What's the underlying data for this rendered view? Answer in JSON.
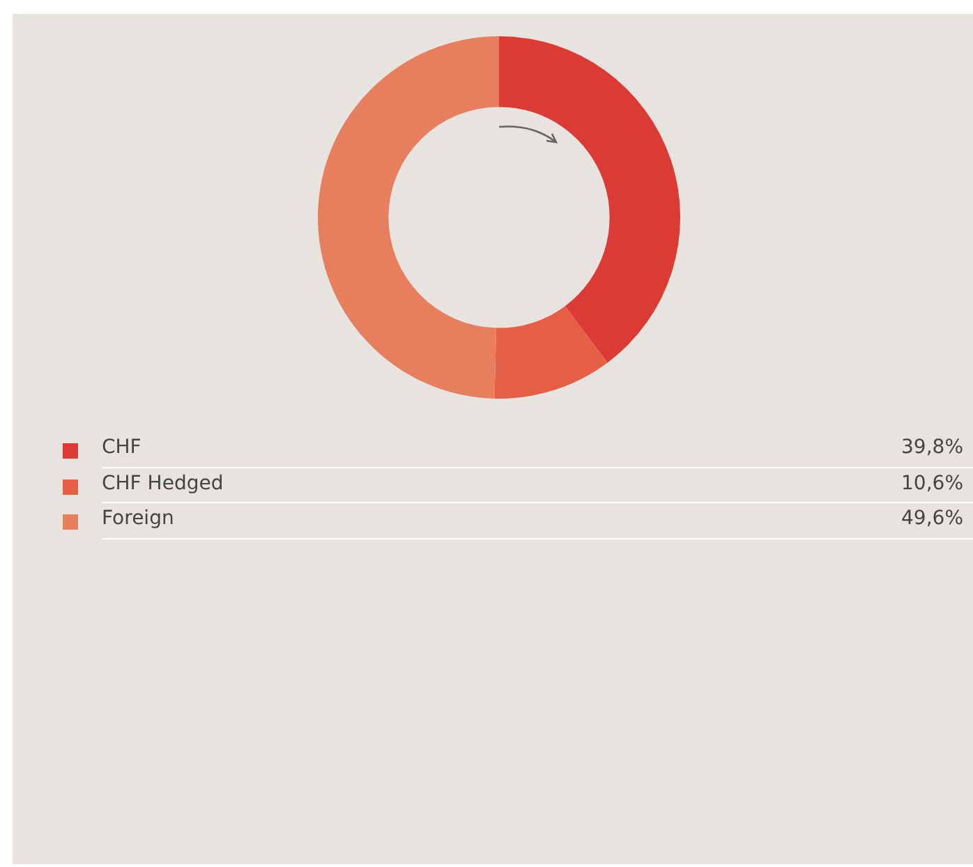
{
  "chart_data": {
    "type": "donut",
    "categories": [
      "CHF",
      "CHF Hedged",
      "Foreign"
    ],
    "values": [
      39.8,
      10.6,
      49.6
    ],
    "colors": [
      "#dc3a35",
      "#e45f45",
      "#e77e5e"
    ],
    "value_labels": [
      "39,8%",
      "10,6%",
      "49,6%"
    ],
    "legend": "bottom"
  }
}
